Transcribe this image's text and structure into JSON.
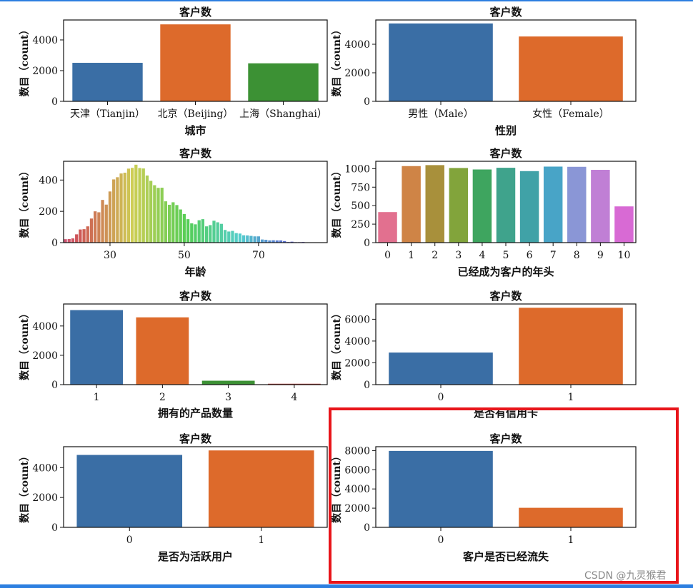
{
  "watermark": "CSDN @九灵猴君",
  "chart_data": [
    {
      "type": "bar",
      "title": "客户数",
      "xlabel": "城市",
      "ylabel": "数目（count）",
      "categories": [
        "天津（Tianjin）",
        "北京（Beijing）",
        "上海（Shanghai）"
      ],
      "values": [
        2509,
        5014,
        2477
      ],
      "colors": [
        "#3a6ea5",
        "#dd6a2b",
        "#3c9134"
      ],
      "ylim": [
        0,
        5300
      ],
      "yticks": [
        0,
        2000,
        4000
      ]
    },
    {
      "type": "bar",
      "title": "客户数",
      "xlabel": "性别",
      "ylabel": "数目（count）",
      "categories": [
        "男性（Male）",
        "女性（Female）"
      ],
      "values": [
        5457,
        4543
      ],
      "colors": [
        "#3a6ea5",
        "#dd6a2b"
      ],
      "ylim": [
        0,
        5700
      ],
      "yticks": [
        0,
        2000,
        4000
      ]
    },
    {
      "type": "bar",
      "title": "客户数",
      "xlabel": "年龄",
      "ylabel": "数目（count）",
      "categories": [
        "18",
        "19",
        "20",
        "21",
        "22",
        "23",
        "24",
        "25",
        "26",
        "27",
        "28",
        "29",
        "30",
        "31",
        "32",
        "33",
        "34",
        "35",
        "36",
        "37",
        "38",
        "39",
        "40",
        "41",
        "42",
        "43",
        "44",
        "45",
        "46",
        "47",
        "48",
        "49",
        "50",
        "51",
        "52",
        "53",
        "54",
        "55",
        "56",
        "57",
        "58",
        "59",
        "60",
        "61",
        "62",
        "63",
        "64",
        "65",
        "66",
        "67",
        "68",
        "69",
        "70",
        "71",
        "72",
        "73",
        "74",
        "75",
        "76",
        "77",
        "78",
        "79",
        "80",
        "81",
        "82",
        "83",
        "84",
        "85",
        "86",
        "88",
        "92"
      ],
      "values": [
        22,
        23,
        27,
        53,
        84,
        86,
        104,
        154,
        200,
        194,
        273,
        243,
        327,
        404,
        418,
        442,
        447,
        473,
        478,
        498,
        477,
        474,
        429,
        395,
        367,
        350,
        351,
        264,
        242,
        258,
        240,
        212,
        183,
        150,
        123,
        117,
        143,
        150,
        104,
        112,
        140,
        130,
        120,
        81,
        71,
        75,
        61,
        58,
        47,
        46,
        43,
        40,
        40,
        20,
        18,
        14,
        15,
        14,
        14,
        10,
        4,
        6,
        3,
        3,
        4,
        1,
        1,
        2,
        2,
        1,
        1
      ],
      "xticks": [
        30,
        50,
        70
      ],
      "ylim": [
        0,
        520
      ],
      "yticks": [
        0,
        200,
        400
      ],
      "palette": "husl gradient (pink → olive → green → teal → blue → purple)"
    },
    {
      "type": "bar",
      "title": "客户数",
      "xlabel": "已经成为客户的年头",
      "ylabel": "数目（count）",
      "categories": [
        "0",
        "1",
        "2",
        "3",
        "4",
        "5",
        "6",
        "7",
        "8",
        "9",
        "10"
      ],
      "values": [
        413,
        1035,
        1048,
        1009,
        989,
        1012,
        967,
        1028,
        1025,
        984,
        490
      ],
      "colors": [
        "#e2708f",
        "#cf8446",
        "#a8903b",
        "#82a43b",
        "#3ea55f",
        "#3fa38c",
        "#40a2a7",
        "#48a4c7",
        "#8a96d6",
        "#c07fd5",
        "#d86ad4"
      ],
      "ylim": [
        0,
        1100
      ],
      "yticks": [
        0,
        250,
        500,
        750,
        1000
      ]
    },
    {
      "type": "bar",
      "title": "客户数",
      "xlabel": "拥有的产品数量",
      "ylabel": "数目（count）",
      "categories": [
        "1",
        "2",
        "3",
        "4"
      ],
      "values": [
        5084,
        4590,
        266,
        60
      ],
      "colors": [
        "#3a6ea5",
        "#dd6a2b",
        "#3c9134",
        "#b0302a"
      ],
      "ylim": [
        0,
        5500
      ],
      "yticks": [
        0,
        2000,
        4000
      ]
    },
    {
      "type": "bar",
      "title": "客户数",
      "xlabel": "是否有信用卡",
      "ylabel": "数目（count）",
      "categories": [
        "0",
        "1"
      ],
      "values": [
        2945,
        7055
      ],
      "colors": [
        "#3a6ea5",
        "#dd6a2b"
      ],
      "ylim": [
        0,
        7400
      ],
      "yticks": [
        0,
        2000,
        4000,
        6000
      ]
    },
    {
      "type": "bar",
      "title": "客户数",
      "xlabel": "是否为活跃用户",
      "ylabel": "数目（count）",
      "categories": [
        "0",
        "1"
      ],
      "values": [
        4849,
        5151
      ],
      "colors": [
        "#3a6ea5",
        "#dd6a2b"
      ],
      "ylim": [
        0,
        5400
      ],
      "yticks": [
        0,
        2000,
        4000
      ]
    },
    {
      "type": "bar",
      "title": "客户数",
      "xlabel": "客户是否已经流失",
      "ylabel": "数目（count）",
      "categories": [
        "0",
        "1"
      ],
      "values": [
        7963,
        2037
      ],
      "colors": [
        "#3a6ea5",
        "#dd6a2b"
      ],
      "ylim": [
        0,
        8400
      ],
      "yticks": [
        0,
        2000,
        4000,
        6000,
        8000
      ]
    }
  ]
}
